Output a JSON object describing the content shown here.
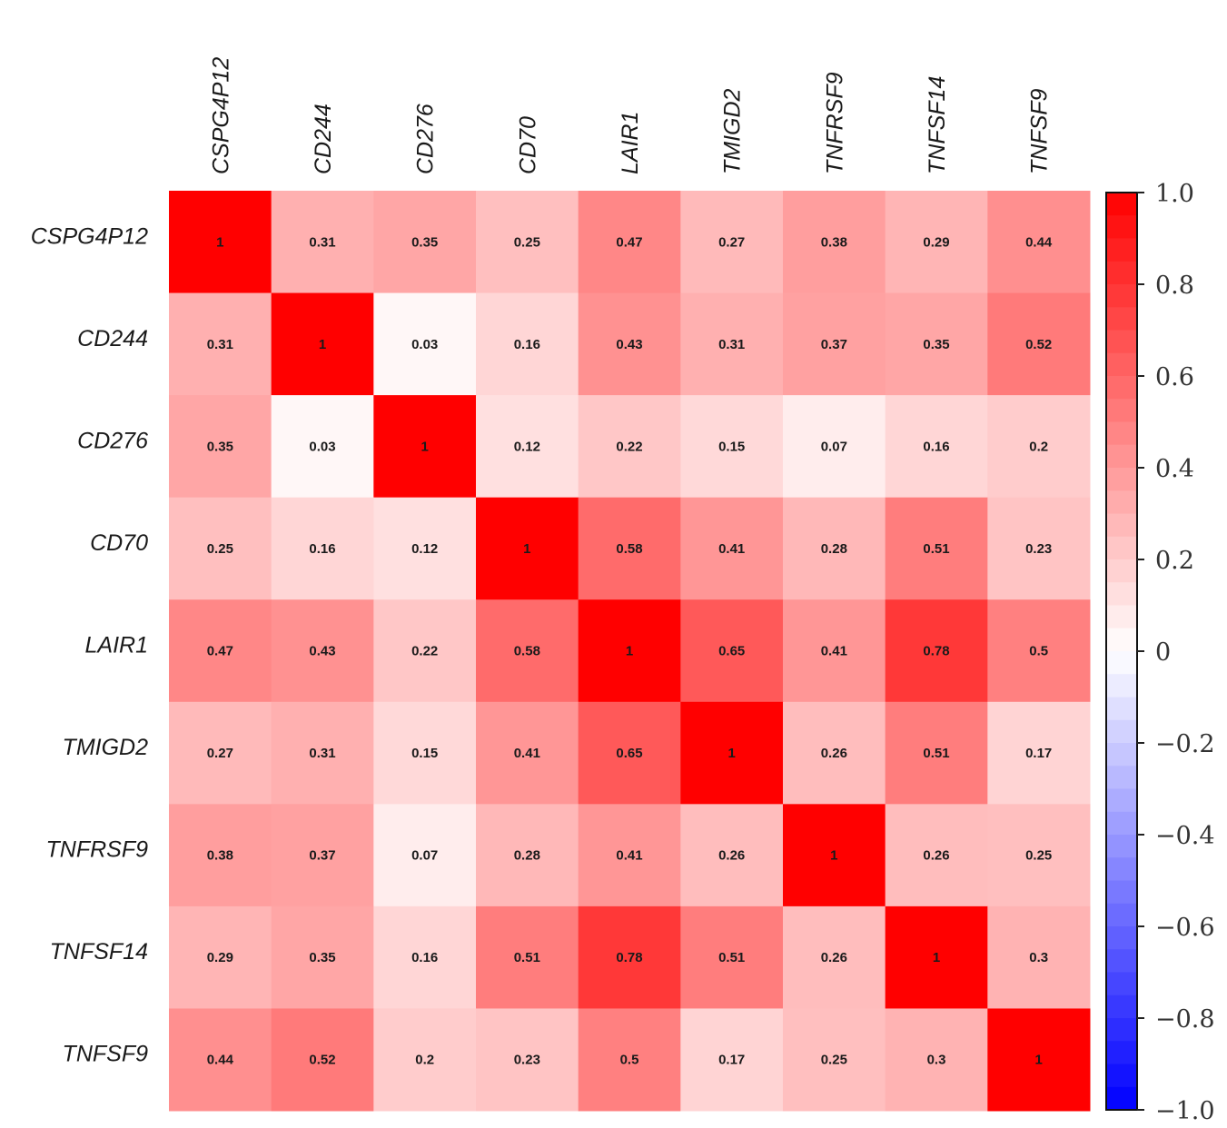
{
  "chart_data": {
    "type": "heatmap",
    "title": "",
    "variables": [
      "CSPG4P12",
      "CD244",
      "CD276",
      "CD70",
      "LAIR1",
      "TMIGD2",
      "TNFRSF9",
      "TNFSF14",
      "TNFSF9"
    ],
    "matrix": [
      [
        1,
        0.31,
        0.35,
        0.25,
        0.47,
        0.27,
        0.38,
        0.29,
        0.44
      ],
      [
        0.31,
        1,
        0.03,
        0.16,
        0.43,
        0.31,
        0.37,
        0.35,
        0.52
      ],
      [
        0.35,
        0.03,
        1,
        0.12,
        0.22,
        0.15,
        0.07,
        0.16,
        0.2
      ],
      [
        0.25,
        0.16,
        0.12,
        1,
        0.58,
        0.41,
        0.28,
        0.51,
        0.23
      ],
      [
        0.47,
        0.43,
        0.22,
        0.58,
        1,
        0.65,
        0.41,
        0.78,
        0.5
      ],
      [
        0.27,
        0.31,
        0.15,
        0.41,
        0.65,
        1,
        0.26,
        0.51,
        0.17
      ],
      [
        0.38,
        0.37,
        0.07,
        0.28,
        0.41,
        0.26,
        1,
        0.26,
        0.25
      ],
      [
        0.29,
        0.35,
        0.16,
        0.51,
        0.78,
        0.51,
        0.26,
        1,
        0.3
      ],
      [
        0.44,
        0.52,
        0.2,
        0.23,
        0.5,
        0.17,
        0.25,
        0.3,
        1
      ]
    ],
    "colorbar": {
      "range": [
        -1.0,
        1.0
      ],
      "ticks": [
        1.0,
        0.8,
        0.6,
        0.4,
        0.2,
        0,
        -0.2,
        -0.4,
        -0.6,
        -0.8,
        -1.0
      ],
      "tick_labels": [
        "1.0",
        "0.8",
        "0.6",
        "0.4",
        "0.2",
        "0",
        "−0.2",
        "−0.4",
        "−0.6",
        "−0.8",
        "−1.0"
      ],
      "colors": {
        "high": "#ff0000",
        "mid": "#ffffff",
        "low": "#0000ff"
      },
      "placement": "right"
    },
    "xlabel": "",
    "ylabel": ""
  }
}
